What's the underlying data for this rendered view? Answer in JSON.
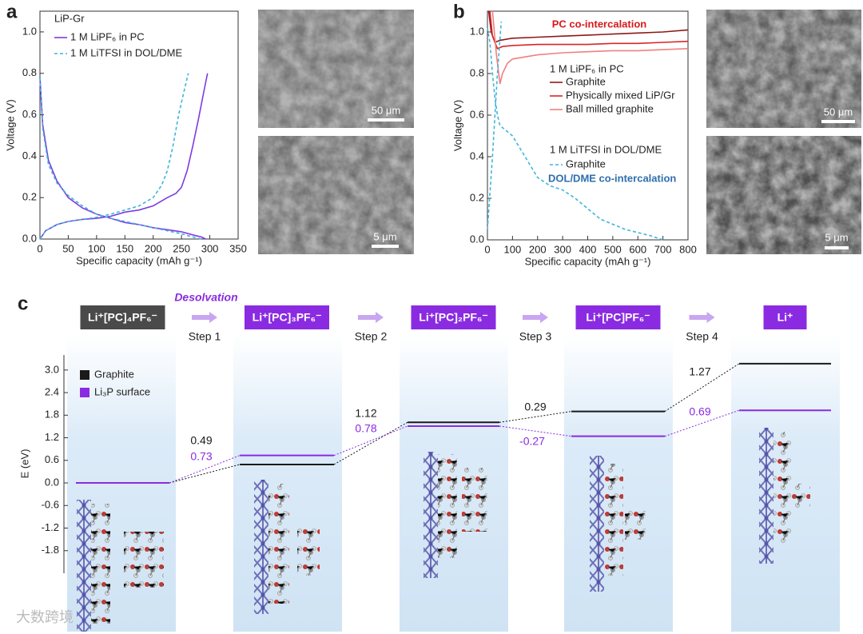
{
  "panel_labels": [
    "a",
    "b",
    "c"
  ],
  "images": [
    {
      "scale_bar": "50 μm"
    },
    {
      "scale_bar": "5 μm"
    },
    {
      "scale_bar": "50 μm"
    },
    {
      "scale_bar": "5 μm"
    }
  ],
  "watermark": "大数跨境",
  "chart_data": [
    {
      "type": "line",
      "annotations": [
        "LiP-Gr"
      ],
      "x_label": "Specific capacity (mAh g⁻¹)",
      "y_label": "Voltage (V)",
      "xlim": [
        0,
        350
      ],
      "xticks": [
        0,
        50,
        100,
        150,
        200,
        250,
        300,
        350
      ],
      "ylim": [
        0,
        1.1
      ],
      "yticks": [
        {
          "value": 0,
          "label": "0.0"
        },
        0.2,
        0.4,
        0.6,
        0.8,
        {
          "value": 1,
          "label": "1.0"
        }
      ],
      "series": [
        {
          "name": "1 M LiPF₆ in PC",
          "color": "#7d3ce0",
          "dashed": false,
          "x": [
            0,
            5,
            15,
            30,
            50,
            75,
            100,
            125,
            150,
            175,
            200,
            225,
            250,
            270,
            285,
            293,
            null,
            0,
            10,
            30,
            50,
            75,
            100,
            125,
            150,
            175,
            200,
            225,
            240,
            250,
            260,
            270,
            280,
            290,
            296
          ],
          "values": [
            0.78,
            0.55,
            0.38,
            0.28,
            0.2,
            0.15,
            0.12,
            0.1,
            0.08,
            0.07,
            0.055,
            0.045,
            0.035,
            0.02,
            0.01,
            0,
            null,
            0,
            0.04,
            0.07,
            0.085,
            0.095,
            0.1,
            0.11,
            0.13,
            0.14,
            0.16,
            0.2,
            0.22,
            0.25,
            0.33,
            0.45,
            0.58,
            0.72,
            0.8
          ]
        },
        {
          "name": "1 M LiTFSI in DOL/DME",
          "color": "#3fb4dc",
          "dashed": true,
          "x": [
            0,
            5,
            15,
            30,
            50,
            75,
            100,
            125,
            150,
            175,
            200,
            225,
            250,
            270,
            285,
            null,
            0,
            10,
            30,
            50,
            75,
            100,
            125,
            150,
            175,
            200,
            215,
            225,
            235,
            245,
            255,
            262
          ],
          "values": [
            0.78,
            0.53,
            0.36,
            0.27,
            0.21,
            0.16,
            0.12,
            0.1,
            0.085,
            0.07,
            0.055,
            0.04,
            0.025,
            0.01,
            0,
            null,
            0,
            0.04,
            0.07,
            0.085,
            0.095,
            0.105,
            0.12,
            0.14,
            0.16,
            0.2,
            0.26,
            0.33,
            0.45,
            0.6,
            0.72,
            0.8
          ]
        }
      ]
    },
    {
      "type": "line",
      "annotations": [
        "PC co-intercalation",
        "1 M LiPF₆ in PC",
        "1 M LiTFSI in DOL/DME",
        "DOL/DME co-intercalation"
      ],
      "x_label": "Specific capacity (mAh g⁻¹)",
      "y_label": "Voltage (V)",
      "xlim": [
        0,
        800
      ],
      "xticks": [
        0,
        100,
        200,
        300,
        400,
        500,
        600,
        700,
        800
      ],
      "ylim": [
        0,
        1.1
      ],
      "yticks": [
        {
          "value": 0,
          "label": "0.0"
        },
        0.2,
        0.4,
        0.6,
        0.8,
        {
          "value": 1,
          "label": "1.0"
        }
      ],
      "series": [
        {
          "name": "Graphite",
          "color": "#8b1a1a",
          "dashed": false,
          "x": [
            5,
            15,
            30,
            50,
            100,
            200,
            300,
            400,
            500,
            600,
            700,
            800
          ],
          "values": [
            1.1,
            1.0,
            0.95,
            0.96,
            0.97,
            0.975,
            0.98,
            0.985,
            0.99,
            0.995,
            1.0,
            1.01
          ]
        },
        {
          "name": "Physically mixed LiP/Gr",
          "color": "#d62728",
          "dashed": false,
          "x": [
            10,
            20,
            40,
            60,
            100,
            200,
            300,
            400,
            500,
            600,
            700,
            800
          ],
          "values": [
            1.1,
            0.98,
            0.92,
            0.93,
            0.935,
            0.94,
            0.94,
            0.94,
            0.945,
            0.945,
            0.95,
            0.955
          ]
        },
        {
          "name": "Ball milled graphite",
          "color": "#f08080",
          "dashed": false,
          "x": [
            20,
            35,
            50,
            60,
            80,
            100,
            200,
            300,
            400,
            500,
            600,
            700,
            800
          ],
          "values": [
            1.1,
            0.9,
            0.75,
            0.8,
            0.85,
            0.87,
            0.89,
            0.9,
            0.905,
            0.91,
            0.91,
            0.915,
            0.92
          ]
        },
        {
          "name": "Graphite",
          "color": "#3fb4dc",
          "dashed": true,
          "x": [
            0,
            10,
            20,
            30,
            40,
            50,
            100,
            150,
            200,
            250,
            300,
            350,
            400,
            450,
            550,
            650,
            700,
            null,
            0,
            20,
            40,
            55
          ],
          "values": [
            1.02,
            0.95,
            0.8,
            0.68,
            0.6,
            0.55,
            0.5,
            0.4,
            0.3,
            0.26,
            0.24,
            0.2,
            0.15,
            0.1,
            0.05,
            0.02,
            0,
            null,
            0.05,
            0.4,
            0.8,
            1.05
          ]
        }
      ]
    },
    {
      "type": "energy",
      "title": "Desolvation",
      "y_label": "E (eV)",
      "categories": [
        "Li⁺[PC]₄PF₆⁻",
        "Li⁺[PC]₃PF₆⁻",
        "Li⁺[PC]₂PF₆⁻",
        "Li⁺[PC]PF₆⁻",
        "Li⁺"
      ],
      "steps": [
        "Step 1",
        "Step 2",
        "Step 3",
        "Step 4"
      ],
      "ylim": [
        -2.4,
        3.4
      ],
      "yticks": [
        {
          "value": 3,
          "label": "3.0"
        },
        2.4,
        1.8,
        1.2,
        0.6,
        {
          "value": 0,
          "label": "0.0"
        },
        -0.6,
        -1.2,
        -1.8
      ],
      "series": [
        {
          "name": "Graphite",
          "color": "#1a1a1a",
          "values": [
            0,
            0.49,
            1.12,
            0.29,
            1.27
          ]
        },
        {
          "name": "Li₃P surface",
          "color": "#8a2be2",
          "values": [
            0,
            0.73,
            0.78,
            -0.27,
            0.69
          ]
        }
      ]
    }
  ]
}
